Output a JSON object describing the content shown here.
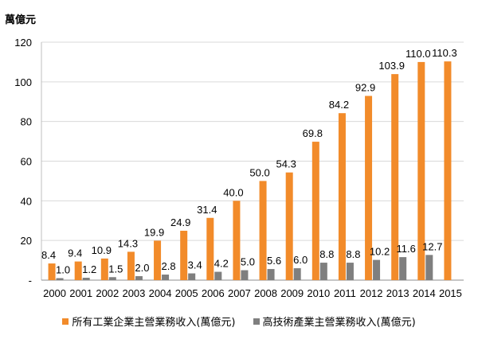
{
  "chart_data": {
    "type": "bar",
    "title": "",
    "ylabel": "萬億元",
    "xlabel": "",
    "ylim": [
      0,
      120
    ],
    "yticks": [
      {
        "value": 0,
        "label": "-"
      },
      {
        "value": 20,
        "label": "20"
      },
      {
        "value": 40,
        "label": "40"
      },
      {
        "value": 60,
        "label": "60"
      },
      {
        "value": 80,
        "label": "80"
      },
      {
        "value": 100,
        "label": "100"
      },
      {
        "value": 120,
        "label": "120"
      }
    ],
    "categories": [
      "2000",
      "2001",
      "2002",
      "2003",
      "2004",
      "2005",
      "2006",
      "2007",
      "2008",
      "2009",
      "2010",
      "2011",
      "2012",
      "2013",
      "2014",
      "2015"
    ],
    "series": [
      {
        "name": "所有工業企業主營業務收入(萬億元)",
        "color": "#f28b2a",
        "values": [
          8.4,
          9.4,
          10.9,
          14.3,
          19.9,
          24.9,
          31.4,
          40.0,
          50.0,
          54.3,
          69.8,
          84.2,
          92.9,
          103.9,
          110.0,
          110.3
        ],
        "labels": [
          "8.4",
          "9.4",
          "10.9",
          "14.3",
          "19.9",
          "24.9",
          "31.4",
          "40.0",
          "50.0",
          "54.3",
          "69.8",
          "84.2",
          "92.9",
          "103.9",
          "110.0",
          "110.3"
        ]
      },
      {
        "name": "高技術產業主營業務收入(萬億元)",
        "color": "#7f7f7f",
        "values": [
          1.0,
          1.2,
          1.5,
          2.0,
          2.8,
          3.4,
          4.2,
          5.0,
          5.6,
          6.0,
          8.8,
          8.8,
          10.2,
          11.6,
          12.7,
          null
        ],
        "labels": [
          "1.0",
          "1.2",
          "1.5",
          "2.0",
          "2.8",
          "3.4",
          "4.2",
          "5.0",
          "5.6",
          "6.0",
          "8.8",
          "8.8",
          "10.2",
          "11.6",
          "12.7",
          ""
        ]
      }
    ],
    "legend_position": "bottom",
    "grid": true
  }
}
